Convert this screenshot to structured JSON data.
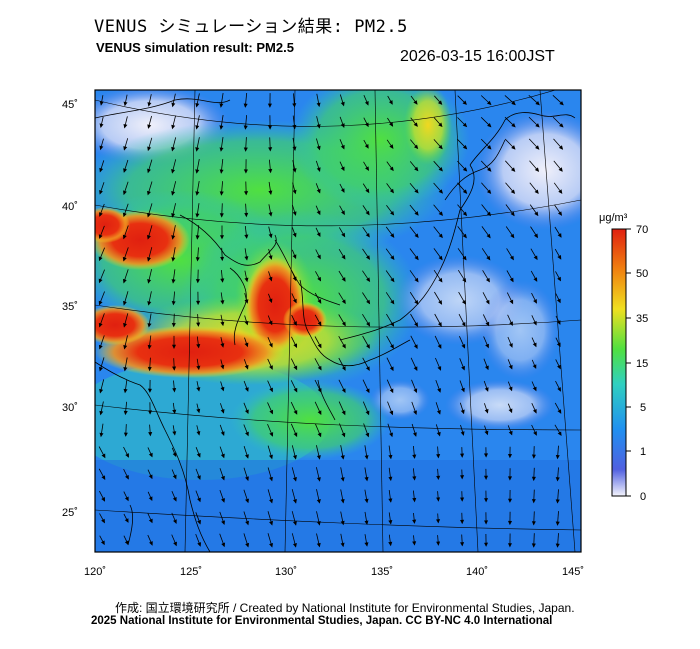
{
  "header": {
    "title_jp": "VENUS シミュレーション結果: PM2.5",
    "title_en": "VENUS simulation result: PM2.5",
    "timestamp": "2026-03-15 16:00JST"
  },
  "map": {
    "lat_labels": [
      "45˚",
      "40˚",
      "35˚",
      "30˚",
      "25˚"
    ],
    "lon_labels": [
      "120˚",
      "125˚",
      "130˚",
      "135˚",
      "140˚",
      "145˚"
    ]
  },
  "colorbar": {
    "unit": "μg/m³",
    "tick_labels": [
      "70",
      "50",
      "35",
      "15",
      "5",
      "1",
      "0"
    ],
    "colors": [
      "#e8e8f8",
      "#4060e0",
      "#2090f0",
      "#30d0c0",
      "#50e040",
      "#f0e020",
      "#f08010",
      "#e02010"
    ]
  },
  "footer": {
    "credit": "作成: 国立環境研究所 / Created by National Institute for Environmental Studies, Japan.",
    "copyright": "2025 National Institute for Environmental Studies, Japan. CC BY-NC 4.0 International"
  }
}
